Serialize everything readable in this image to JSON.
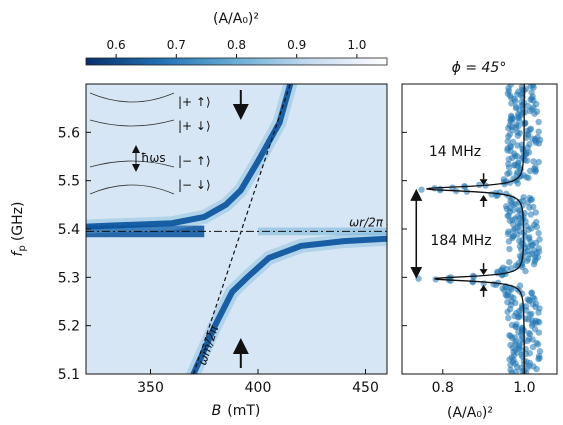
{
  "chart_data": [
    {
      "type": "heatmap",
      "name": "spectroscopy-map",
      "xlabel_sym": "B",
      "xlabel_unit": "(mT)",
      "ylabel_sym": "f",
      "ylabel_sub": "p",
      "ylabel_unit": "(GHz)",
      "xlim": [
        320,
        460
      ],
      "ylim": [
        5.1,
        5.7
      ],
      "xticks": [
        350,
        400,
        450
      ],
      "yticks": [
        5.1,
        5.2,
        5.3,
        5.4,
        5.5,
        5.6
      ],
      "colorbar": {
        "label": "(A/A₀)²",
        "range": [
          0.55,
          1.05
        ],
        "ticks": [
          0.6,
          0.7,
          0.8,
          0.9,
          1.0
        ]
      },
      "lines": {
        "resonator_frequency_GHz": 5.395,
        "resonator_label": "ωr/2π",
        "magnon_line_label": "ωm/2π",
        "magnon_line_points": [
          [
            370,
            5.1
          ],
          [
            415,
            5.7
          ]
        ]
      },
      "anticrossing_branches": {
        "center_B_mT": 392,
        "upper_branch": [
          [
            320,
            5.405
          ],
          [
            360,
            5.412
          ],
          [
            375,
            5.425
          ],
          [
            385,
            5.45
          ],
          [
            392,
            5.48
          ],
          [
            400,
            5.54
          ],
          [
            410,
            5.62
          ],
          [
            415,
            5.7
          ]
        ],
        "lower_branch": [
          [
            370,
            5.1
          ],
          [
            380,
            5.2
          ],
          [
            388,
            5.27
          ],
          [
            395,
            5.3
          ],
          [
            405,
            5.34
          ],
          [
            420,
            5.365
          ],
          [
            440,
            5.375
          ],
          [
            460,
            5.38
          ]
        ]
      },
      "inset": {
        "levels": [
          "|+ ↑⟩",
          "|+ ↓⟩",
          "|− ↑⟩",
          "|− ↓⟩"
        ],
        "splitting_label": "ħωs"
      }
    },
    {
      "type": "scatter",
      "name": "line-cut",
      "title": "ϕ = 45°",
      "xlabel": "(A/A₀)²",
      "xlim": [
        0.7,
        1.08
      ],
      "ylim": [
        5.1,
        5.7
      ],
      "xticks": [
        0.8,
        1.0
      ],
      "annotations": {
        "small_gap_label": "14 MHz",
        "large_gap_label": "184 MHz"
      },
      "dips": [
        {
          "f_GHz": 5.483,
          "min_value": 0.76
        },
        {
          "f_GHz": 5.297,
          "min_value": 0.78
        }
      ]
    }
  ]
}
